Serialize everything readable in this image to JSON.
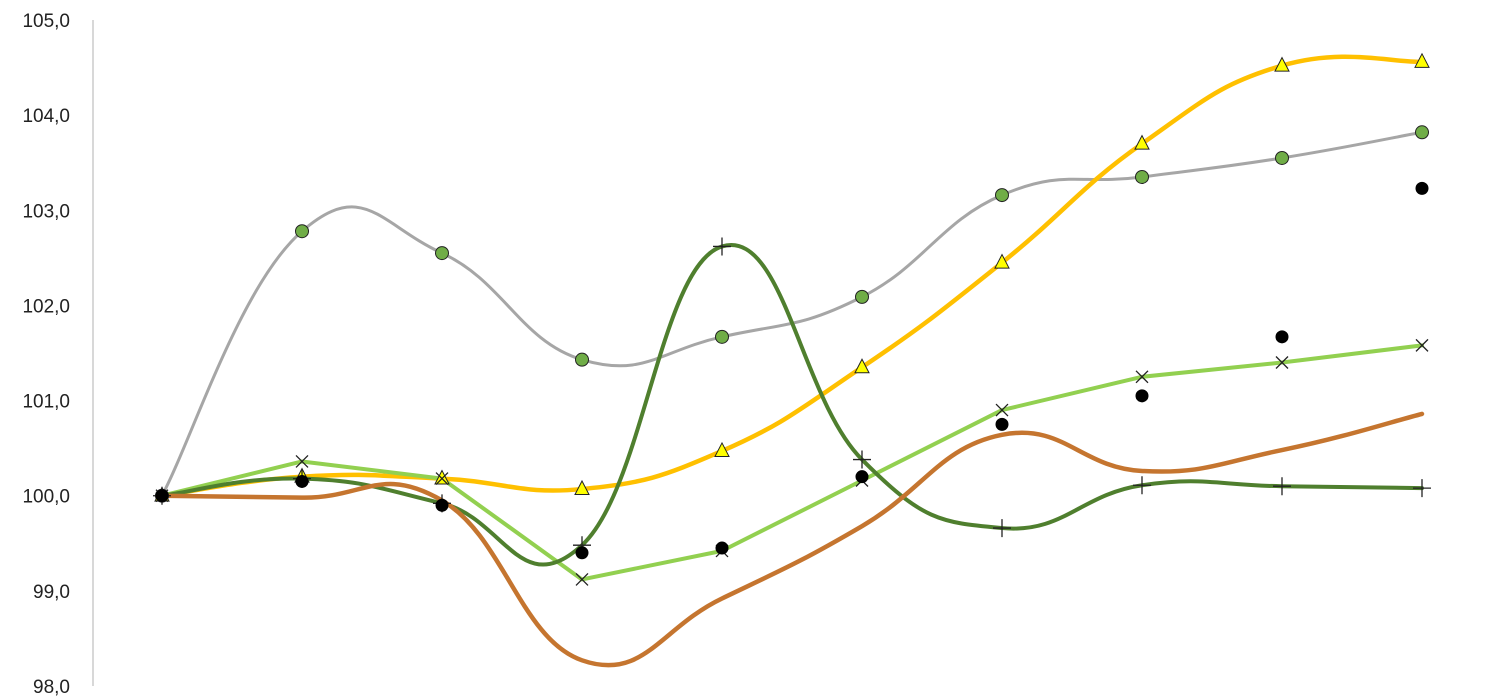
{
  "chart_data": {
    "type": "line",
    "title": "",
    "xlabel": "",
    "ylabel": "",
    "ylim": [
      98,
      105
    ],
    "yticks": [
      "98,0",
      "99,0",
      "100,0",
      "101,0",
      "102,0",
      "103,0",
      "104,0",
      "105,0"
    ],
    "x": [
      1,
      2,
      3,
      4,
      5,
      6,
      7,
      8,
      9,
      10
    ],
    "grid": false,
    "legend": "none",
    "series": [
      {
        "line_color": "#a6a6a6",
        "marker": "circle",
        "marker_fill": "#70ad47",
        "values": [
          100.0,
          102.78,
          102.55,
          101.43,
          101.67,
          102.09,
          103.16,
          103.35,
          103.55,
          103.82
        ]
      },
      {
        "line_color": "#ffc000",
        "marker": "triangle",
        "marker_fill": "#ffff00",
        "values": [
          100.0,
          100.2,
          100.18,
          100.07,
          100.47,
          101.35,
          102.45,
          103.7,
          104.52,
          104.56
        ]
      },
      {
        "line_color": "#92d050",
        "marker": "x",
        "marker_fill": "#000000",
        "values": [
          100.0,
          100.36,
          100.18,
          99.12,
          99.42,
          100.16,
          100.9,
          101.25,
          101.4,
          101.58
        ]
      },
      {
        "line_color": "#4f7f2e",
        "marker": "plus",
        "marker_fill": "#000000",
        "values": [
          100.0,
          100.18,
          99.92,
          99.48,
          102.62,
          100.38,
          99.66,
          100.11,
          100.1,
          100.08
        ]
      },
      {
        "line_color": "#c5752f",
        "marker": "none",
        "values": [
          100.0,
          99.98,
          99.95,
          98.27,
          98.92,
          99.68,
          100.64,
          100.26,
          100.48,
          100.86
        ]
      },
      {
        "line_color": "none",
        "marker": "dot",
        "marker_fill": "#000000",
        "values": [
          100.0,
          100.15,
          99.9,
          99.4,
          99.45,
          100.2,
          100.75,
          101.05,
          101.67,
          103.23
        ]
      }
    ]
  }
}
